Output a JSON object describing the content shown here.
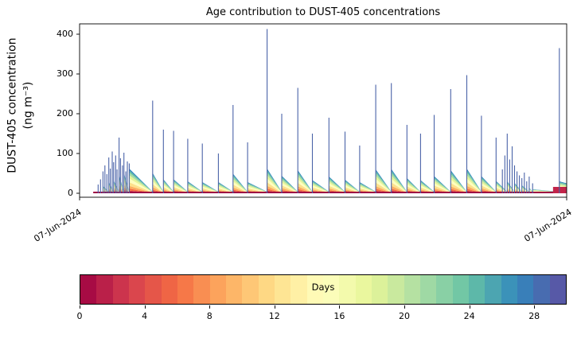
{
  "figure": {
    "title": "Age contribution to DUST-405 concentrations",
    "ylabel_line1": "DUST-405 concentration",
    "ylabel_line2": "(ng m⁻³)",
    "xtick_left": "07-Jun-2024",
    "xtick_right": "07-Jun-2024"
  },
  "yticks": [
    0,
    100,
    200,
    300,
    400
  ],
  "colorbar": {
    "label": "Days",
    "ticks": [
      0,
      4,
      8,
      12,
      16,
      20,
      24,
      28
    ],
    "range": [
      0,
      30
    ],
    "cells": 30,
    "spectral_stops": [
      "#9e0142",
      "#d53e4f",
      "#f46d43",
      "#fdae61",
      "#fee08b",
      "#ffffbf",
      "#e6f598",
      "#abdda4",
      "#66c2a5",
      "#3288bd",
      "#5e4fa2"
    ]
  },
  "chart_data": {
    "type": "area",
    "title": "Age contribution to DUST-405 concentrations",
    "xlabel": "",
    "ylabel": "DUST-405 concentration (ng m⁻³)",
    "x_axis": {
      "start_label": "07-Jun-2024",
      "end_label": "07-Jun-2024",
      "note": "x given as fraction 0-1 of axis span"
    },
    "ylim": [
      0,
      426
    ],
    "grid": false,
    "legend": {
      "type": "horizontal-colorbar",
      "label": "Days",
      "range_days": [
        0,
        30
      ],
      "position": "bottom"
    },
    "spike_color": "#4a63a8",
    "base_color": "#9e0142",
    "end_blob_color": "#c2254a",
    "band_fractions": [
      0.05,
      0.06,
      0.08,
      0.11,
      0.15,
      0.15,
      0.13,
      0.11,
      0.09,
      0.07
    ],
    "band_colors": [
      "#9e0142",
      "#d53e4f",
      "#f46d43",
      "#fdae61",
      "#fee08b",
      "#ffffbf",
      "#e6f598",
      "#abdda4",
      "#66c2a5",
      "#3288bd"
    ],
    "spikes_format": [
      "x_fraction",
      "peak_ng_m3",
      "aged_envelope_start_ng_m3"
    ],
    "spikes": [
      [
        0.038,
        22,
        0
      ],
      [
        0.043,
        35,
        0
      ],
      [
        0.048,
        55,
        18
      ],
      [
        0.052,
        70,
        0
      ],
      [
        0.056,
        48,
        0
      ],
      [
        0.06,
        90,
        28
      ],
      [
        0.063,
        62,
        0
      ],
      [
        0.067,
        105,
        0
      ],
      [
        0.07,
        78,
        32
      ],
      [
        0.074,
        95,
        0
      ],
      [
        0.077,
        60,
        0
      ],
      [
        0.081,
        140,
        45
      ],
      [
        0.084,
        88,
        0
      ],
      [
        0.088,
        70,
        0
      ],
      [
        0.091,
        102,
        50
      ],
      [
        0.095,
        55,
        0
      ],
      [
        0.098,
        80,
        0
      ],
      [
        0.102,
        75,
        62
      ],
      [
        0.15,
        233,
        51
      ],
      [
        0.172,
        160,
        35
      ],
      [
        0.193,
        157,
        35
      ],
      [
        0.222,
        137,
        30
      ],
      [
        0.252,
        125,
        28
      ],
      [
        0.285,
        100,
        28
      ],
      [
        0.315,
        222,
        49
      ],
      [
        0.345,
        128,
        28
      ],
      [
        0.385,
        413,
        62
      ],
      [
        0.415,
        200,
        44
      ],
      [
        0.448,
        265,
        58
      ],
      [
        0.478,
        150,
        33
      ],
      [
        0.512,
        190,
        42
      ],
      [
        0.545,
        155,
        34
      ],
      [
        0.575,
        120,
        28
      ],
      [
        0.608,
        273,
        60
      ],
      [
        0.64,
        277,
        61
      ],
      [
        0.672,
        172,
        38
      ],
      [
        0.7,
        150,
        33
      ],
      [
        0.728,
        197,
        43
      ],
      [
        0.762,
        262,
        58
      ],
      [
        0.795,
        297,
        62
      ],
      [
        0.825,
        195,
        43
      ],
      [
        0.855,
        140,
        31
      ],
      [
        0.868,
        60,
        0
      ],
      [
        0.873,
        95,
        0
      ],
      [
        0.878,
        150,
        30
      ],
      [
        0.883,
        85,
        0
      ],
      [
        0.888,
        118,
        0
      ],
      [
        0.893,
        70,
        26
      ],
      [
        0.898,
        55,
        0
      ],
      [
        0.903,
        45,
        0
      ],
      [
        0.908,
        38,
        20
      ],
      [
        0.913,
        52,
        0
      ],
      [
        0.918,
        30,
        0
      ],
      [
        0.923,
        42,
        14
      ],
      [
        0.93,
        25,
        10
      ],
      [
        0.985,
        365,
        30
      ]
    ]
  }
}
